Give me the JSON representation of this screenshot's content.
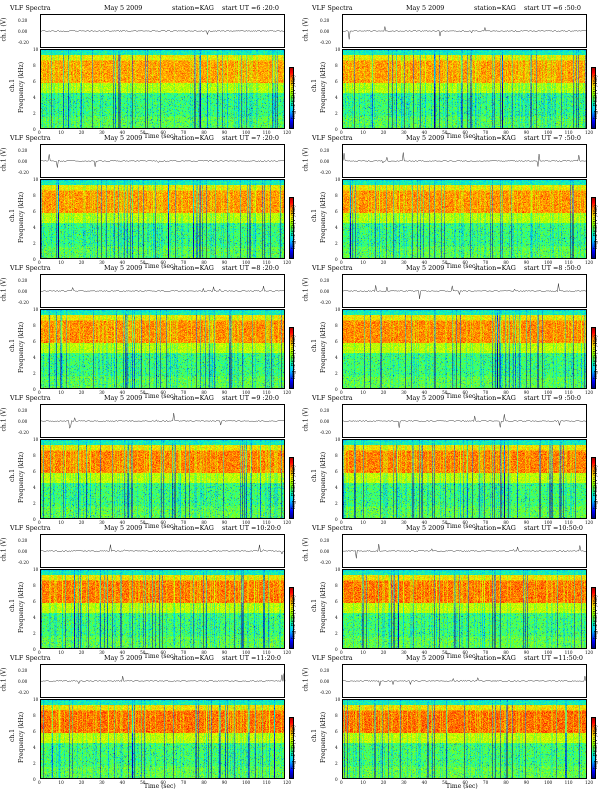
{
  "chart_data": [
    {
      "type": "heatmap",
      "title": "VLF Spectra",
      "date": "May  5 2009",
      "station": "station=KAG",
      "ut_label": "start  UT =6 :20:0",
      "ylabel_top": "ch.1 (V)",
      "ylabel_bottom": "Frequency  (kHz)",
      "ylabel_bottom_ch": "ch.1",
      "colorbar_label": "log₁₀PSD(V²/Hz)",
      "xlabel": "Time  (sec)",
      "xlim": [
        0,
        120
      ],
      "ylim": [
        0,
        10
      ],
      "trace_ticks": [
        "0.20",
        "0.00",
        "-0.20"
      ],
      "x_ticks": [
        0,
        10,
        20,
        30,
        40,
        50,
        60,
        70,
        80,
        90,
        100,
        110,
        120
      ],
      "y_ticks": [
        0,
        2,
        4,
        6,
        8,
        10
      ]
    },
    {
      "type": "heatmap",
      "title": "VLF Spectra",
      "date": "May  5 2009",
      "station": "station=KAG",
      "ut_label": "start  UT =6 :50:0",
      "ylabel_top": "ch.1 (V)",
      "ylabel_bottom": "Frequency  (kHz)",
      "ylabel_bottom_ch": "ch.1",
      "colorbar_label": "log₁₀PSD(V²/Hz)",
      "xlabel": "Time  (sec)",
      "xlim": [
        0,
        120
      ],
      "ylim": [
        0,
        10
      ],
      "trace_ticks": [
        "0.20",
        "0.00",
        "-0.20"
      ],
      "x_ticks": [
        0,
        10,
        20,
        30,
        40,
        50,
        60,
        70,
        80,
        90,
        100,
        110,
        120
      ],
      "y_ticks": [
        0,
        2,
        4,
        6,
        8,
        10
      ]
    },
    {
      "type": "heatmap",
      "title": "VLF Spectra",
      "date": "May  5 2009",
      "station": "station=KAG",
      "ut_label": "start  UT =7 :20:0",
      "ylabel_top": "ch.1 (V)",
      "ylabel_bottom": "Frequency  (kHz)",
      "ylabel_bottom_ch": "ch.1",
      "colorbar_label": "log₁₀PSD(V²/Hz)",
      "xlabel": "Time  (sec)",
      "xlim": [
        0,
        120
      ],
      "ylim": [
        0,
        10
      ],
      "trace_ticks": [
        "0.20",
        "0.00",
        "-0.20"
      ],
      "x_ticks": [
        0,
        10,
        20,
        30,
        40,
        50,
        60,
        70,
        80,
        90,
        100,
        110,
        120
      ],
      "y_ticks": [
        0,
        2,
        4,
        6,
        8,
        10
      ]
    },
    {
      "type": "heatmap",
      "title": "VLF Spectra",
      "date": "May  5 2009",
      "station": "station=KAG",
      "ut_label": "start  UT =7 :50:0",
      "ylabel_top": "ch.1 (V)",
      "ylabel_bottom": "Frequency  (kHz)",
      "ylabel_bottom_ch": "ch.1",
      "colorbar_label": "log₁₀PSD(V²/Hz)",
      "xlabel": "Time  (sec)",
      "xlim": [
        0,
        120
      ],
      "ylim": [
        0,
        10
      ],
      "trace_ticks": [
        "0.20",
        "0.00",
        "-0.20"
      ],
      "x_ticks": [
        0,
        10,
        20,
        30,
        40,
        50,
        60,
        70,
        80,
        90,
        100,
        110,
        120
      ],
      "y_ticks": [
        0,
        2,
        4,
        6,
        8,
        10
      ]
    },
    {
      "type": "heatmap",
      "title": "VLF Spectra",
      "date": "May  5 2009",
      "station": "station=KAG",
      "ut_label": "start  UT =8 :20:0",
      "ylabel_top": "ch.1 (V)",
      "ylabel_bottom": "Frequency  (kHz)",
      "ylabel_bottom_ch": "ch.1",
      "colorbar_label": "log₁₀PSD(V²/Hz)",
      "xlabel": "Time  (sec)",
      "xlim": [
        0,
        120
      ],
      "ylim": [
        0,
        10
      ],
      "trace_ticks": [
        "0.20",
        "0.00",
        "-0.20"
      ],
      "x_ticks": [
        0,
        10,
        20,
        30,
        40,
        50,
        60,
        70,
        80,
        90,
        100,
        110,
        120
      ],
      "y_ticks": [
        0,
        2,
        4,
        6,
        8,
        10
      ]
    },
    {
      "type": "heatmap",
      "title": "VLF Spectra",
      "date": "May  5 2009",
      "station": "station=KAG",
      "ut_label": "start  UT =8 :50:0",
      "ylabel_top": "ch.1 (V)",
      "ylabel_bottom": "Frequency  (kHz)",
      "ylabel_bottom_ch": "ch.1",
      "colorbar_label": "log₁₀PSD(V²/Hz)",
      "xlabel": "Time  (sec)",
      "xlim": [
        0,
        120
      ],
      "ylim": [
        0,
        10
      ],
      "trace_ticks": [
        "0.20",
        "0.00",
        "-0.20"
      ],
      "x_ticks": [
        0,
        10,
        20,
        30,
        40,
        50,
        60,
        70,
        80,
        90,
        100,
        110,
        120
      ],
      "y_ticks": [
        0,
        2,
        4,
        6,
        8,
        10
      ]
    },
    {
      "type": "heatmap",
      "title": "VLF Spectra",
      "date": "May  5 2009",
      "station": "station=KAG",
      "ut_label": "start  UT =9 :20:0",
      "ylabel_top": "ch.1 (V)",
      "ylabel_bottom": "Frequency  (kHz)",
      "ylabel_bottom_ch": "ch.1",
      "colorbar_label": "log₁₀PSD(V²/Hz)",
      "xlabel": "Time  (sec)",
      "xlim": [
        0,
        120
      ],
      "ylim": [
        0,
        10
      ],
      "trace_ticks": [
        "0.20",
        "0.00",
        "-0.20"
      ],
      "x_ticks": [
        0,
        10,
        20,
        30,
        40,
        50,
        60,
        70,
        80,
        90,
        100,
        110,
        120
      ],
      "y_ticks": [
        0,
        2,
        4,
        6,
        8,
        10
      ]
    },
    {
      "type": "heatmap",
      "title": "VLF Spectra",
      "date": "May  5 2009",
      "station": "station=KAG",
      "ut_label": "start  UT =9 :50:0",
      "ylabel_top": "ch.1 (V)",
      "ylabel_bottom": "Frequency  (kHz)",
      "ylabel_bottom_ch": "ch.1",
      "colorbar_label": "log₁₀PSD(V²/Hz)",
      "xlabel": "Time  (sec)",
      "xlim": [
        0,
        120
      ],
      "ylim": [
        0,
        10
      ],
      "trace_ticks": [
        "0.20",
        "0.00",
        "-0.20"
      ],
      "x_ticks": [
        0,
        10,
        20,
        30,
        40,
        50,
        60,
        70,
        80,
        90,
        100,
        110,
        120
      ],
      "y_ticks": [
        0,
        2,
        4,
        6,
        8,
        10
      ]
    },
    {
      "type": "heatmap",
      "title": "VLF Spectra",
      "date": "May  5 2009",
      "station": "station=KAG",
      "ut_label": "start  UT =10:20:0",
      "ylabel_top": "ch.1 (V)",
      "ylabel_bottom": "Frequency  (kHz)",
      "ylabel_bottom_ch": "ch.1",
      "colorbar_label": "log₁₀PSD(V²/Hz)",
      "xlabel": "Time  (sec)",
      "xlim": [
        0,
        120
      ],
      "ylim": [
        0,
        10
      ],
      "trace_ticks": [
        "0.20",
        "0.00",
        "-0.20"
      ],
      "x_ticks": [
        0,
        10,
        20,
        30,
        40,
        50,
        60,
        70,
        80,
        90,
        100,
        110,
        120
      ],
      "y_ticks": [
        0,
        2,
        4,
        6,
        8,
        10
      ]
    },
    {
      "type": "heatmap",
      "title": "VLF Spectra",
      "date": "May  5 2009",
      "station": "station=KAG",
      "ut_label": "start  UT =10:50:0",
      "ylabel_top": "ch.1 (V)",
      "ylabel_bottom": "Frequency  (kHz)",
      "ylabel_bottom_ch": "ch.1",
      "colorbar_label": "log₁₀PSD(V²/Hz)",
      "xlabel": "Time  (sec)",
      "xlim": [
        0,
        120
      ],
      "ylim": [
        0,
        10
      ],
      "trace_ticks": [
        "0.20",
        "0.00",
        "-0.20"
      ],
      "x_ticks": [
        0,
        10,
        20,
        30,
        40,
        50,
        60,
        70,
        80,
        90,
        100,
        110,
        120
      ],
      "y_ticks": [
        0,
        2,
        4,
        6,
        8,
        10
      ]
    },
    {
      "type": "heatmap",
      "title": "VLF Spectra",
      "date": "May  5 2009",
      "station": "station=KAG",
      "ut_label": "start  UT =11:20:0",
      "ylabel_top": "ch.1 (V)",
      "ylabel_bottom": "Frequency  (kHz)",
      "ylabel_bottom_ch": "ch.1",
      "colorbar_label": "log₁₀PSD(V²/Hz)",
      "xlabel": "Time  (sec)",
      "xlim": [
        0,
        120
      ],
      "ylim": [
        0,
        10
      ],
      "trace_ticks": [
        "0.20",
        "0.00",
        "-0.20"
      ],
      "x_ticks": [
        0,
        10,
        20,
        30,
        40,
        50,
        60,
        70,
        80,
        90,
        100,
        110,
        120
      ],
      "y_ticks": [
        0,
        2,
        4,
        6,
        8,
        10
      ]
    },
    {
      "type": "heatmap",
      "title": "VLF Spectra",
      "date": "May  5 2009",
      "station": "station=KAG",
      "ut_label": "start  UT =11:50:0",
      "ylabel_top": "ch.1 (V)",
      "ylabel_bottom": "Frequency  (kHz)",
      "ylabel_bottom_ch": "ch.1",
      "colorbar_label": "log₁₀PSD(V²/Hz)",
      "xlabel": "Time  (sec)",
      "xlim": [
        0,
        120
      ],
      "ylim": [
        0,
        10
      ],
      "trace_ticks": [
        "0.20",
        "0.00",
        "-0.20"
      ],
      "x_ticks": [
        0,
        10,
        20,
        30,
        40,
        50,
        60,
        70,
        80,
        90,
        100,
        110,
        120
      ],
      "y_ticks": [
        0,
        2,
        4,
        6,
        8,
        10
      ]
    }
  ],
  "colors": {
    "low": "#0000ff",
    "mid": "#00ffcc",
    "green": "#7fff00",
    "yellow": "#ffff00",
    "high": "#ff0000"
  }
}
